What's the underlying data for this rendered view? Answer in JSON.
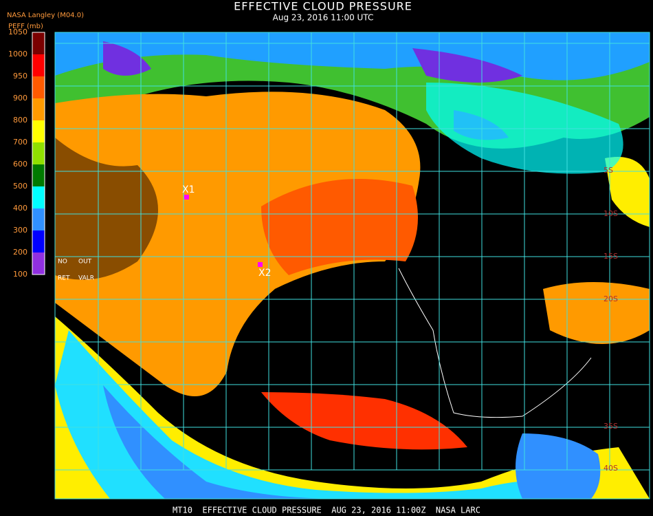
{
  "header": {
    "title": "EFFECTIVE CLOUD PRESSURE",
    "subtitle": "Aug 23, 2016 11:00 UTC",
    "source": "NASA Langley (M04.0)"
  },
  "legend": {
    "unit": "PEFF (mb)",
    "ticks": [
      1050,
      1000,
      950,
      900,
      800,
      700,
      600,
      500,
      400,
      300,
      200,
      100
    ],
    "colors": [
      "#7a0000",
      "#ff0000",
      "#ff5a00",
      "#ff9a00",
      "#ffff00",
      "#90e000",
      "#007a00",
      "#00ffff",
      "#3090ff",
      "#0000ff",
      "#9030e0"
    ]
  },
  "flags": [
    "NO",
    "OUT",
    "RET",
    "VALR"
  ],
  "latitudes": [
    "5S",
    "10S",
    "15S",
    "20S",
    "35S",
    "40S"
  ],
  "markers": [
    "X1",
    "X2"
  ],
  "footer": "MT10  EFFECTIVE CLOUD PRESSURE  AUG 23, 2016 11:00Z  NASA LARC"
}
